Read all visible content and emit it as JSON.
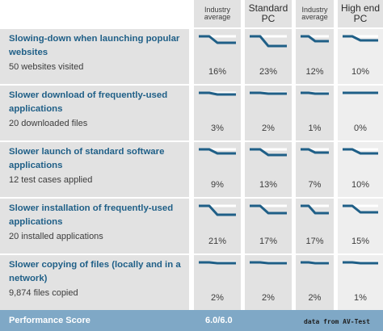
{
  "header": {
    "columns": [
      {
        "label": "Industry average"
      },
      {
        "label": "Standard PC"
      },
      {
        "label": "Industry average"
      },
      {
        "label": "High end PC"
      }
    ]
  },
  "rows": [
    {
      "title": "Slowing-down when launching popular websites",
      "subtitle": "50 websites visited",
      "values": [
        "16%",
        "23%",
        "12%",
        "10%"
      ],
      "slowdown": [
        0.16,
        0.23,
        0.12,
        0.1
      ]
    },
    {
      "title": "Slower download of frequently-used applications",
      "subtitle": "20 downloaded files",
      "values": [
        "3%",
        "2%",
        "1%",
        "0%"
      ],
      "slowdown": [
        0.03,
        0.02,
        0.01,
        0.0
      ]
    },
    {
      "title": "Slower launch of standard software applications",
      "subtitle": "12 test cases applied",
      "values": [
        "9%",
        "13%",
        "7%",
        "10%"
      ],
      "slowdown": [
        0.09,
        0.13,
        0.07,
        0.1
      ]
    },
    {
      "title": "Slower installation of frequently-used applications",
      "subtitle": "20 installed applications",
      "values": [
        "21%",
        "17%",
        "17%",
        "15%"
      ],
      "slowdown": [
        0.21,
        0.17,
        0.17,
        0.15
      ]
    },
    {
      "title": "Slower copying of files (locally and in a network)",
      "subtitle": "9,874 files copied",
      "values": [
        "2%",
        "2%",
        "2%",
        "1%"
      ],
      "slowdown": [
        0.02,
        0.02,
        0.02,
        0.01
      ]
    }
  ],
  "footer": {
    "label": "Performance Score",
    "score": "6.0/6.0",
    "credit": "data from AV-Test"
  },
  "colors": {
    "row_bg": "#e2e2e2",
    "highlight_col_bg": "#eeeeee",
    "title_text": "#1f5f87",
    "graph_line": "#1f5f87",
    "graph_shadow": "#ffffff",
    "footer_bg": "#7fa8c6"
  }
}
